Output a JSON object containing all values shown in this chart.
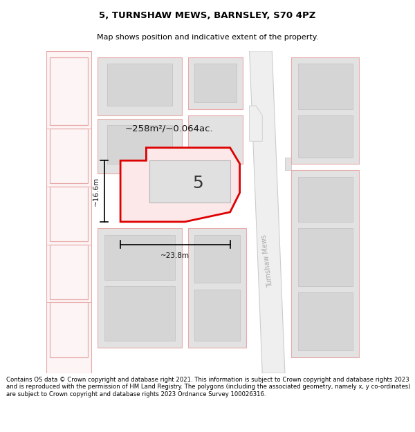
{
  "title": "5, TURNSHAW MEWS, BARNSLEY, S70 4PZ",
  "subtitle": "Map shows position and indicative extent of the property.",
  "footer": "Contains OS data © Crown copyright and database right 2021. This information is subject to Crown copyright and database rights 2023 and is reproduced with the permission of HM Land Registry. The polygons (including the associated geometry, namely x, y co-ordinates) are subject to Crown copyright and database rights 2023 Ordnance Survey 100026316.",
  "area_label": "~258m²/~0.064ac.",
  "width_label": "~23.8m",
  "height_label": "~16.6m",
  "property_number": "5",
  "road_label": "Turnshaw Mews",
  "highlight_color": "#dd0000",
  "highlight_fill": "#fce8e8",
  "building_fill": "#e2e2e2",
  "building_stroke": "#c0c0c0",
  "pink_stroke": "#e8aaaa",
  "pink_fill": "#fdf5f5",
  "road_fill": "#efefef",
  "road_stroke": "#cccccc",
  "map_bg": "#faf6f6",
  "white": "#ffffff"
}
